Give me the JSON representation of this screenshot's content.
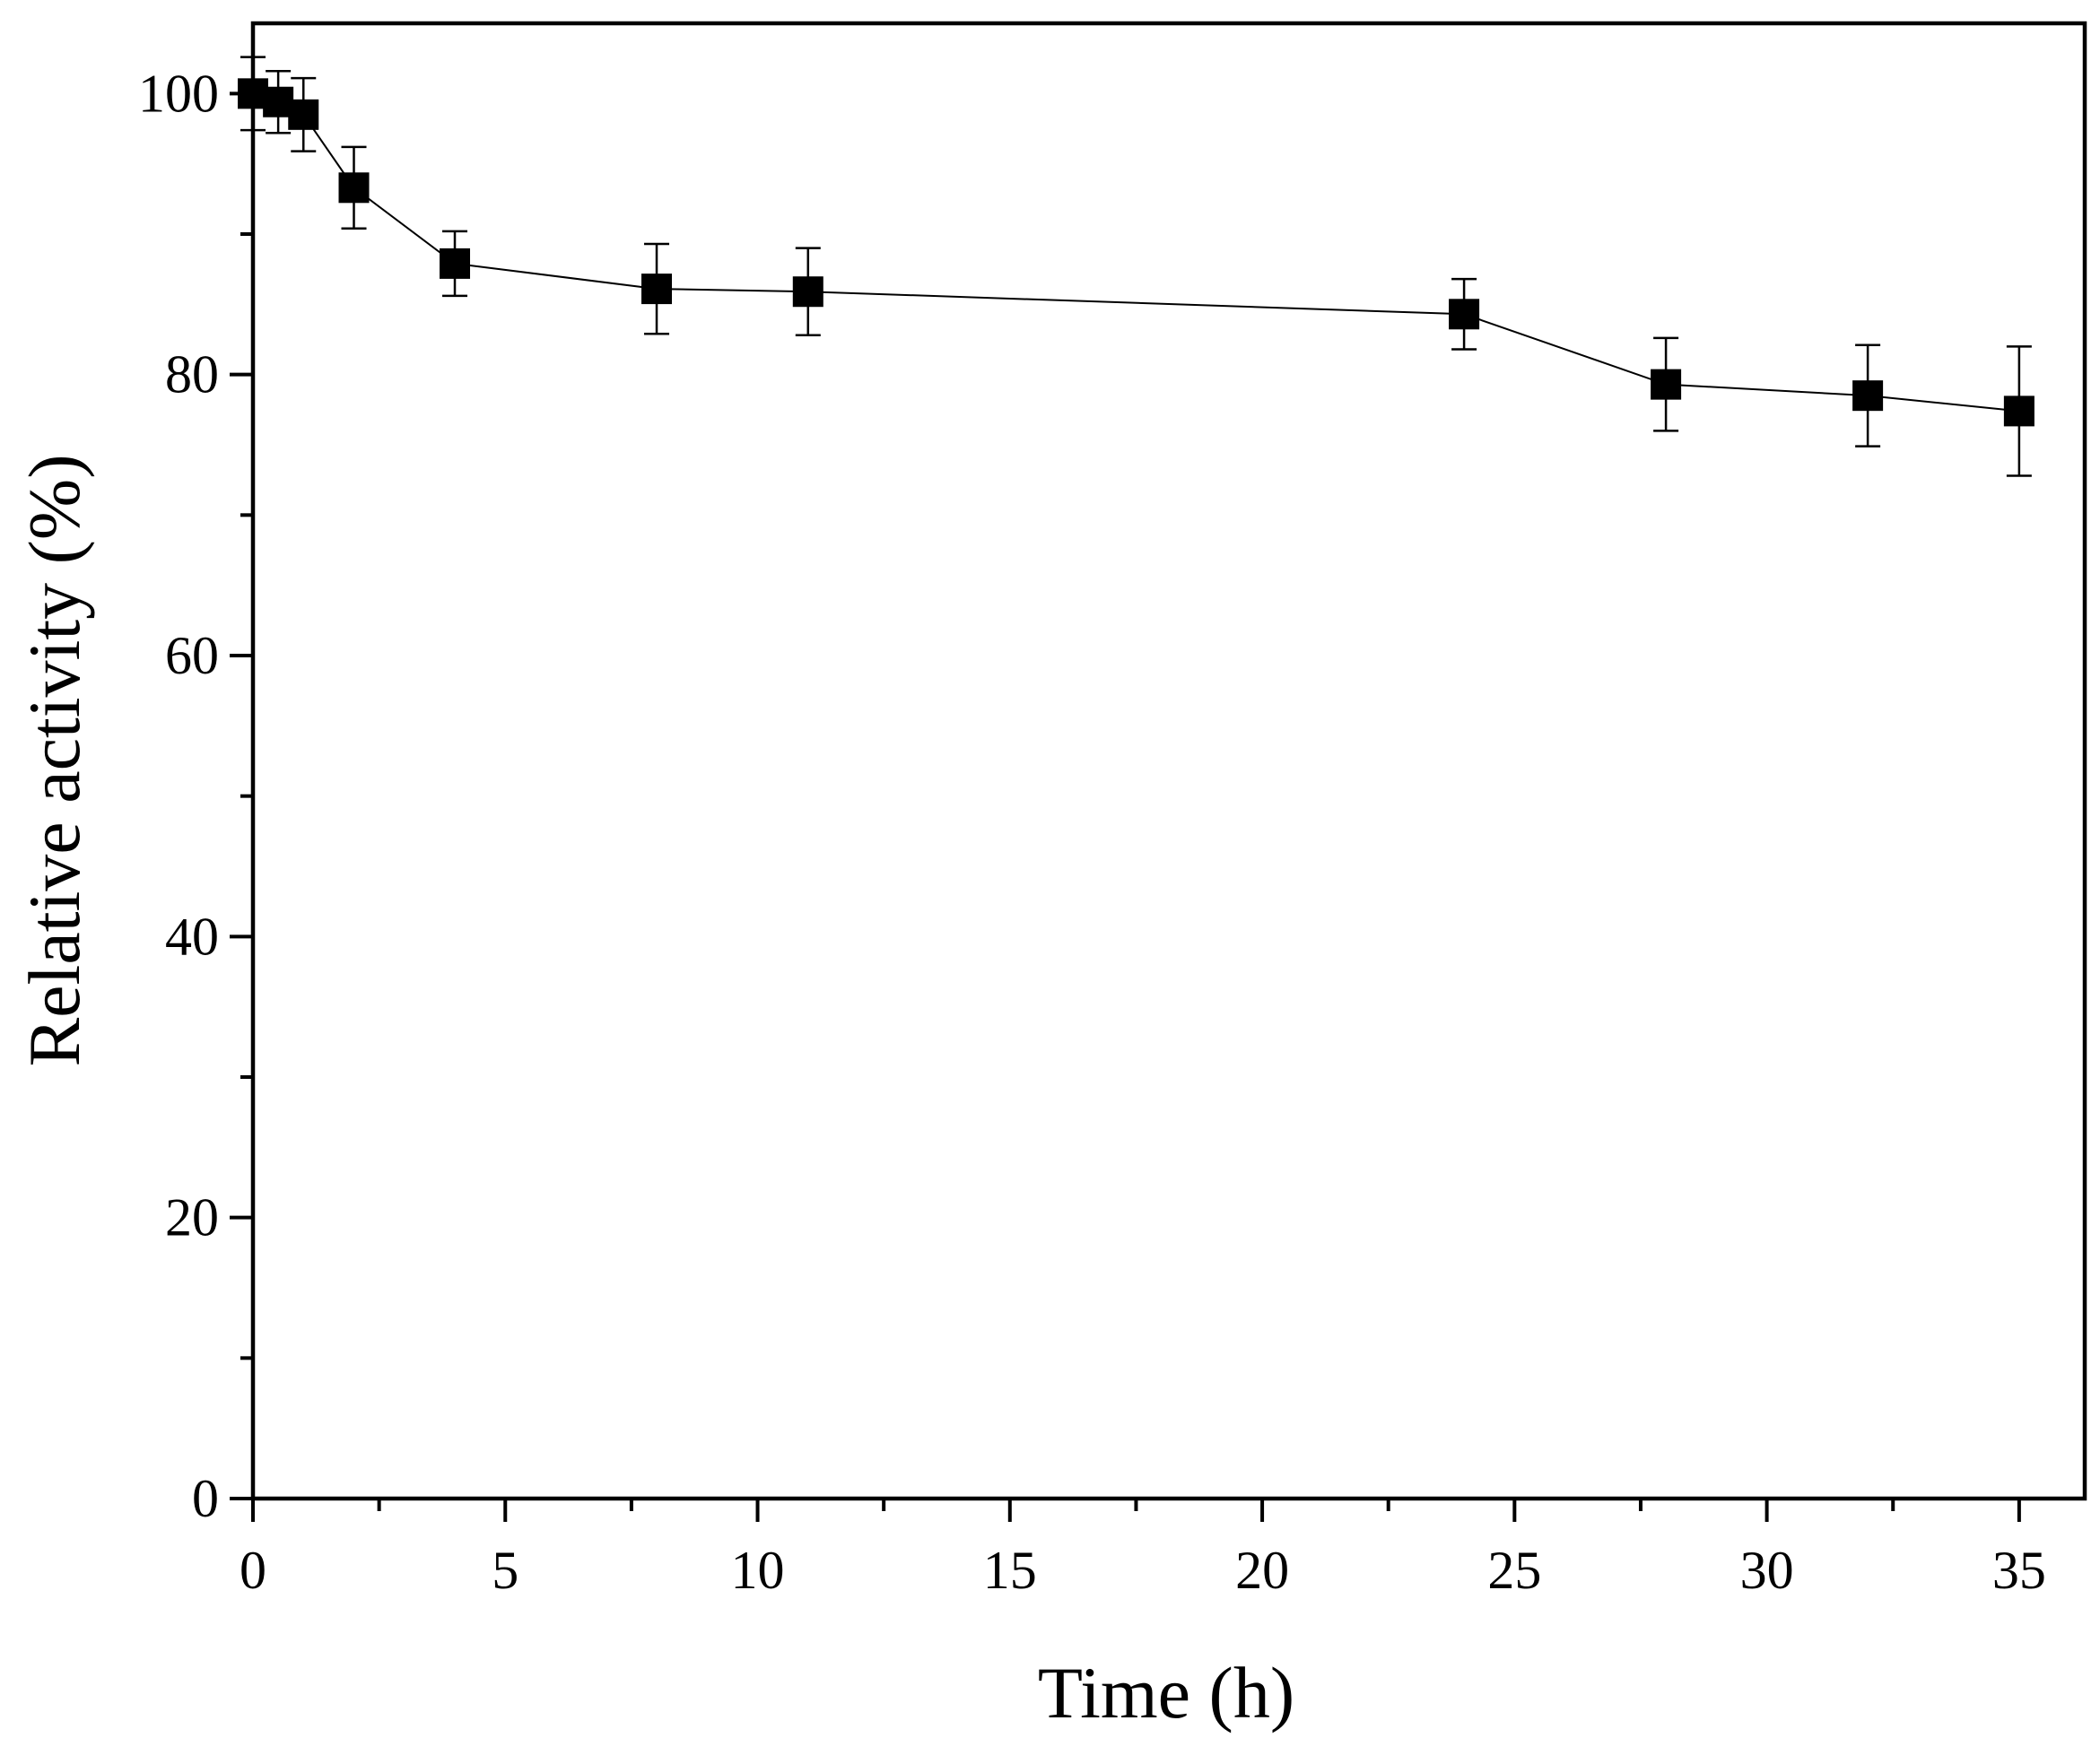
{
  "chart_data": {
    "type": "scatter",
    "title": "",
    "xlabel": "Time (h)",
    "ylabel": "Relative activity (%)",
    "xlim": [
      0,
      36.3
    ],
    "ylim": [
      0,
      105
    ],
    "x_ticks": [
      0,
      5,
      10,
      15,
      20,
      25,
      30,
      35
    ],
    "x_tick_labels": [
      "0",
      "5",
      "10",
      "15",
      "20",
      "25",
      "30",
      "35"
    ],
    "x_minor_ticks": [
      2.5,
      7.5,
      12.5,
      17.5,
      22.5,
      27.5,
      32.5
    ],
    "y_ticks": [
      0,
      20,
      40,
      60,
      80,
      100
    ],
    "y_tick_labels": [
      "0",
      "20",
      "40",
      "60",
      "80",
      "100"
    ],
    "y_minor_ticks": [
      10,
      30,
      50,
      70,
      90
    ],
    "grid": false,
    "series": [
      {
        "name": "Relative activity",
        "marker": "square",
        "line": true,
        "color": "#000000",
        "x": [
          0,
          0.5,
          1,
          2,
          4,
          8,
          11,
          24,
          28,
          32,
          35
        ],
        "y": [
          100,
          99.4,
          98.5,
          93.3,
          87.9,
          86.1,
          85.9,
          84.3,
          79.3,
          78.5,
          77.4
        ],
        "error": [
          2.6,
          2.2,
          2.6,
          2.9,
          2.3,
          3.2,
          3.1,
          2.5,
          3.3,
          3.6,
          4.6
        ]
      }
    ]
  }
}
